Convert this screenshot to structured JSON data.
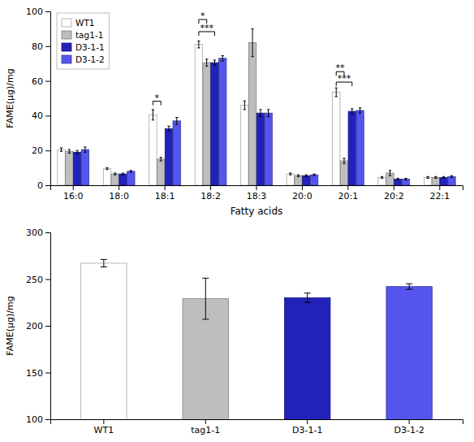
{
  "chart_data": [
    {
      "type": "bar",
      "xlabel": "Fatty acids",
      "ylabel": "FAME(μg)/mg",
      "categories": [
        "16:0",
        "18:0",
        "18:1",
        "18:2",
        "18:3",
        "20:0",
        "20:1",
        "20:2",
        "22:1"
      ],
      "series": [
        {
          "name": "WT1",
          "color": "#FFFFFF",
          "values": [
            20.5,
            9.5,
            40.5,
            81.0,
            46.0,
            6.5,
            53.5,
            4.5,
            4.5
          ],
          "errors": [
            1.0,
            0.5,
            3.0,
            2.0,
            2.5,
            0.5,
            2.5,
            0.5,
            0.5
          ]
        },
        {
          "name": "tag1-1",
          "color": "#BEBEBE",
          "values": [
            19.5,
            6.5,
            15.0,
            70.5,
            82.0,
            5.5,
            14.0,
            7.0,
            4.5
          ],
          "errors": [
            1.0,
            0.5,
            1.0,
            2.0,
            8.0,
            0.5,
            1.5,
            1.5,
            0.5
          ]
        },
        {
          "name": "D3-1-1",
          "color": "#2222BB",
          "values": [
            19.0,
            6.5,
            32.5,
            70.5,
            41.5,
            5.5,
            42.5,
            3.5,
            4.5
          ],
          "errors": [
            1.0,
            0.5,
            1.5,
            1.5,
            2.0,
            0.5,
            1.5,
            0.5,
            0.5
          ]
        },
        {
          "name": "D3-1-2",
          "color": "#5555EE",
          "values": [
            20.5,
            8.0,
            37.0,
            73.0,
            41.5,
            6.0,
            43.0,
            3.5,
            5.0
          ],
          "errors": [
            1.5,
            0.5,
            2.0,
            1.5,
            2.0,
            0.5,
            1.5,
            0.5,
            0.5
          ]
        }
      ],
      "ylim": [
        0,
        100
      ],
      "yticks": [
        0,
        20,
        40,
        60,
        80,
        100
      ],
      "grid": false,
      "legend": "upper left",
      "annotations": [
        {
          "text": "*",
          "category": "18:1",
          "from": "WT1",
          "to": "tag1-1",
          "y": 46
        },
        {
          "text": "***",
          "category": "18:2",
          "from": "WT1",
          "to": "D3-1-1",
          "y": 86
        },
        {
          "text": "*",
          "category": "18:2",
          "from": "WT1",
          "to": "tag1-1",
          "y": 93
        },
        {
          "text": "***",
          "category": "20:1",
          "from": "WT1",
          "to": "D3-1-1",
          "y": 57
        },
        {
          "text": "**",
          "category": "20:1",
          "from": "WT1",
          "to": "tag1-1",
          "y": 63
        }
      ]
    },
    {
      "type": "bar",
      "ylabel": "FAME(μg)/mg",
      "categories": [
        "WT1",
        "tag1-1",
        "D3-1-1",
        "D3-1-2"
      ],
      "values": [
        267.0,
        229.0,
        230.0,
        242.0
      ],
      "errors": [
        4.0,
        22.0,
        5.0,
        3.0
      ],
      "colors": [
        "#FFFFFF",
        "#BEBEBE",
        "#2222BB",
        "#5555EE"
      ],
      "ylim": [
        100,
        300
      ],
      "yticks": [
        100,
        150,
        200,
        250,
        300
      ],
      "grid": false
    }
  ]
}
